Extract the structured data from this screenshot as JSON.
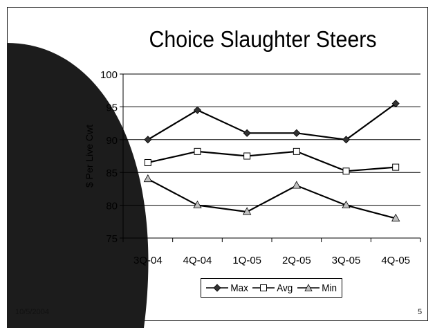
{
  "slide": {
    "title": "Choice Slaughter Steers",
    "date": "10/5/2004",
    "page_number": "5"
  },
  "colors": {
    "background": "#ffffff",
    "decoration": "#1c1c1c",
    "max_marker": "#333333",
    "avg_marker": "#ffffff",
    "min_marker": "#c0c0c0",
    "line": "#000000"
  },
  "chart_data": {
    "type": "line",
    "title": "Choice Slaughter Steers",
    "xlabel": "",
    "ylabel": "$ Per Live Cwt",
    "categories": [
      "3Q-04",
      "4Q-04",
      "1Q-05",
      "2Q-05",
      "3Q-05",
      "4Q-05"
    ],
    "ylim": [
      75,
      100
    ],
    "yticks": [
      75,
      80,
      85,
      90,
      95,
      100
    ],
    "grid": true,
    "legend_position": "bottom",
    "series": [
      {
        "name": "Max",
        "marker": "diamond",
        "values": [
          90,
          94.5,
          91,
          91,
          90,
          95.5
        ]
      },
      {
        "name": "Avg",
        "marker": "square",
        "values": [
          86.5,
          88.2,
          87.5,
          88.2,
          85.2,
          85.8
        ]
      },
      {
        "name": "Min",
        "marker": "triangle",
        "values": [
          84,
          80,
          79,
          83,
          80,
          78
        ]
      }
    ]
  }
}
